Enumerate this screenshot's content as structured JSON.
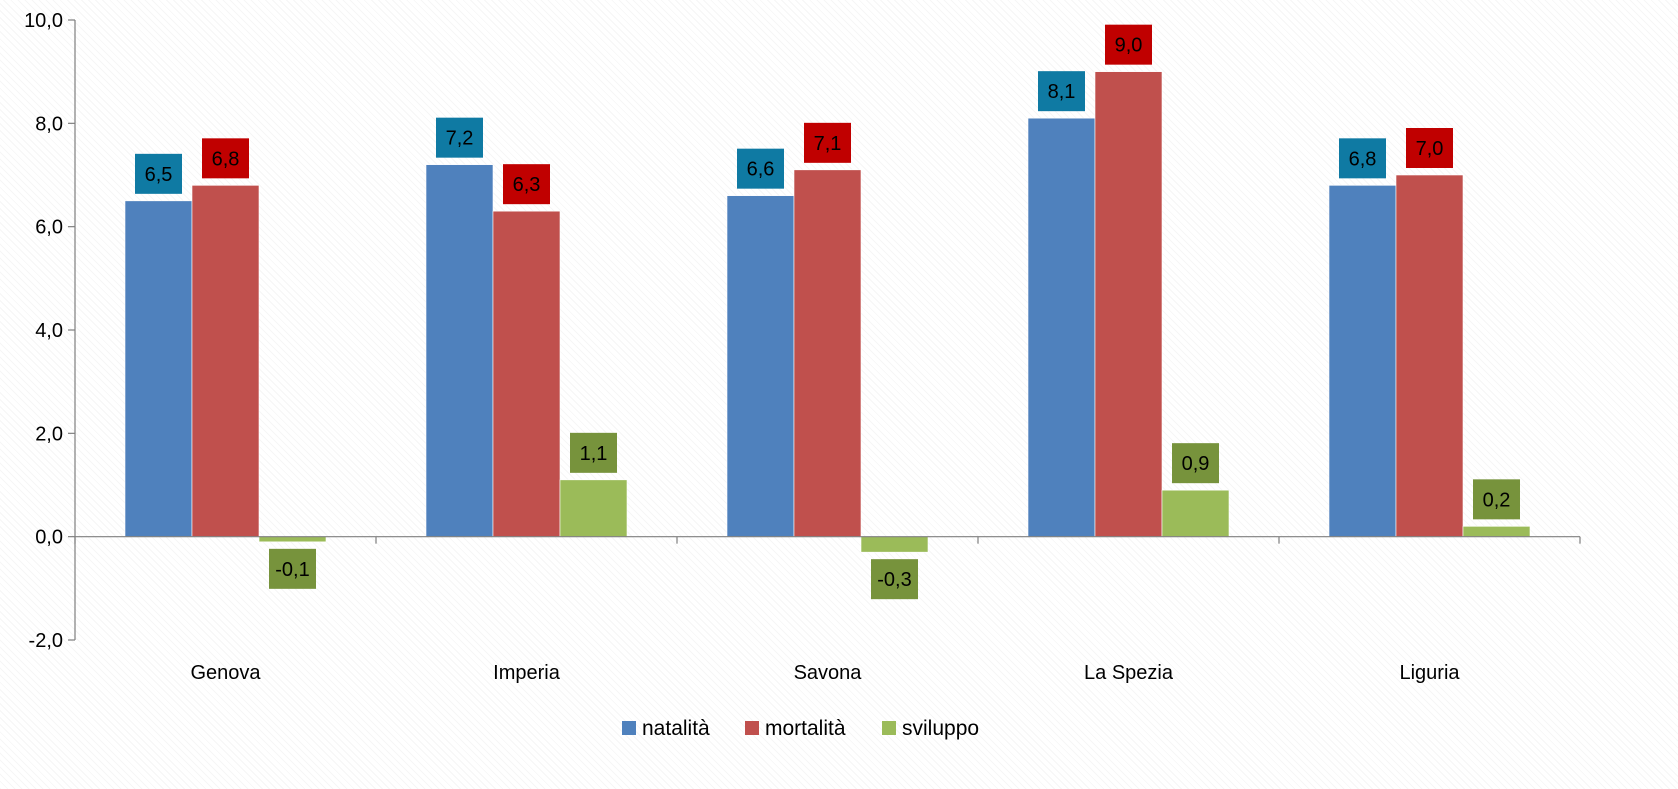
{
  "chart_data": {
    "type": "bar",
    "categories": [
      "Genova",
      "Imperia",
      "Savona",
      "La Spezia",
      "Liguria"
    ],
    "series": [
      {
        "name": "natalità",
        "values": [
          6.5,
          7.2,
          6.6,
          8.1,
          6.8
        ],
        "color": "#4F81BD",
        "label_color": "#0F7AA3"
      },
      {
        "name": "mortalità",
        "values": [
          6.8,
          6.3,
          7.1,
          9.0,
          7.0
        ],
        "color": "#C0504D",
        "label_color": "#C00000"
      },
      {
        "name": "sviluppo",
        "values": [
          -0.1,
          1.1,
          -0.3,
          0.9,
          0.2
        ],
        "color": "#9BBB59",
        "label_color": "#77933C"
      }
    ],
    "ylim": [
      -2,
      10
    ],
    "yticks": [
      -2,
      0,
      2,
      4,
      6,
      8,
      10
    ],
    "ytick_labels": [
      "-2,0",
      "0,0",
      "2,0",
      "4,0",
      "6,0",
      "8,0",
      "10,0"
    ],
    "data_labels": [
      [
        "6,5",
        "7,2",
        "6,6",
        "8,1",
        "6,8"
      ],
      [
        "6,8",
        "6,3",
        "7,1",
        "9,0",
        "7,0"
      ],
      [
        "-0,1",
        "1,1",
        "-0,3",
        "0,9",
        "0,2"
      ]
    ],
    "title": "",
    "xlabel": "",
    "ylabel": "",
    "legend": "bottom",
    "grid": false
  }
}
